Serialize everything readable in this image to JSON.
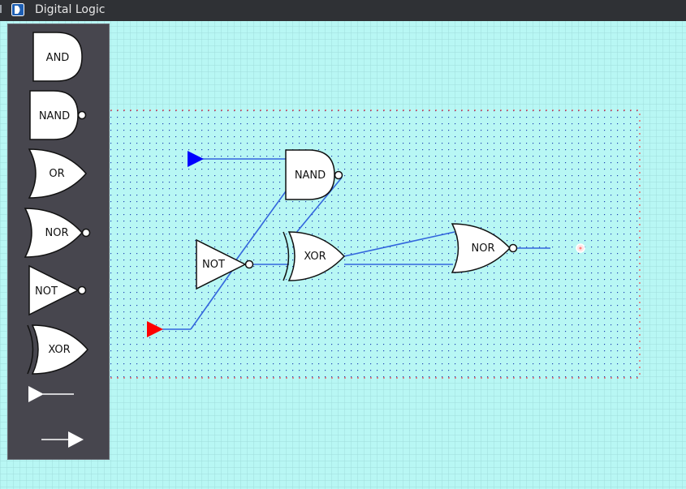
{
  "window": {
    "title": "Digital Logic",
    "icon": "app-logo-icon"
  },
  "palette": {
    "items": [
      {
        "label": "AND",
        "icon": "and-gate-icon"
      },
      {
        "label": "NAND",
        "icon": "nand-gate-icon"
      },
      {
        "label": "OR",
        "icon": "or-gate-icon"
      },
      {
        "label": "NOR",
        "icon": "nor-gate-icon"
      },
      {
        "label": "NOT",
        "icon": "not-gate-icon"
      },
      {
        "label": "XOR",
        "icon": "xor-gate-icon"
      },
      {
        "label": "",
        "icon": "input-source-icon"
      },
      {
        "label": "",
        "icon": "output-arrow-icon"
      }
    ]
  },
  "circuit": {
    "gates": [
      {
        "label": "NAND",
        "type": "nand"
      },
      {
        "label": "NOT",
        "type": "not"
      },
      {
        "label": "XOR",
        "type": "xor"
      },
      {
        "label": "NOR",
        "type": "nor"
      }
    ],
    "inputs": [
      {
        "name": "input-a",
        "color": "#0000ff"
      },
      {
        "name": "input-b",
        "color": "#ff0000"
      }
    ]
  },
  "colors": {
    "background": "#b8f7f4",
    "grid_line": "#9fdedb",
    "board_dot": "#1a3fb0",
    "board_border": "#ff2020",
    "wire": "#3366dd",
    "gate_fill": "#ffffff",
    "gate_stroke": "#111111",
    "palette_bg": "#47464e",
    "titlebar_bg": "#2f3135"
  }
}
